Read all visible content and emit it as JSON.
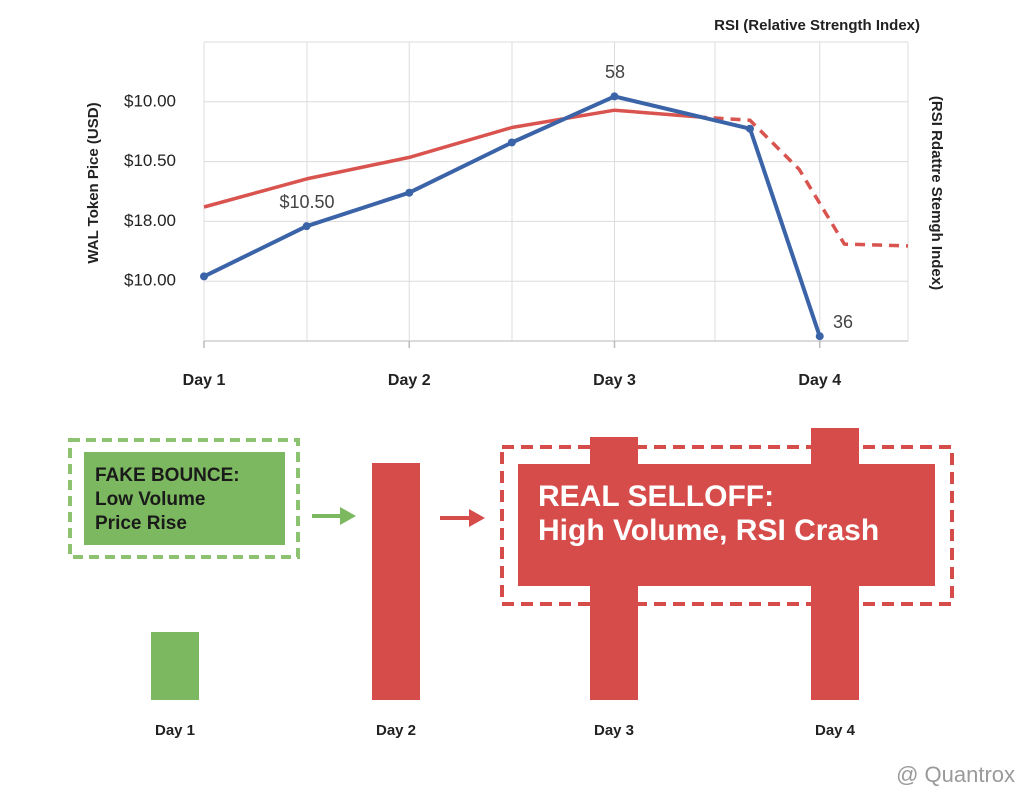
{
  "chart_data": [
    {
      "type": "line",
      "title": "RSI (Relative Strength Index)",
      "y_label": "WAL Token Pice (USD)",
      "y2_label": "(RSI Rdattre Stemgh Index)",
      "xlim": [
        1,
        4.43
      ],
      "xticks": [
        {
          "value": 1,
          "label": "Day 1"
        },
        {
          "value": 2,
          "label": "Day 2"
        },
        {
          "value": 3,
          "label": "Day 3"
        },
        {
          "value": 4,
          "label": "Day 4"
        }
      ],
      "ylim": [
        -1,
        4
      ],
      "yticks": [
        {
          "value": 3,
          "label": "$10.00"
        },
        {
          "value": 2,
          "label": "$10.50"
        },
        {
          "value": 1,
          "label": "$18.00"
        },
        {
          "value": 0,
          "label": "$10.00"
        }
      ],
      "grid": true,
      "series": [
        {
          "color": "#d9534f",
          "dashed": false,
          "markers": false,
          "x": [
            1,
            1.5,
            2,
            2.5,
            3,
            3.4
          ],
          "values": [
            1.24,
            1.71,
            2.07,
            2.57,
            2.86,
            2.75
          ]
        },
        {
          "color": "#d9534f",
          "dashed": true,
          "markers": false,
          "x": [
            3.4,
            3.66,
            3.9,
            4.12,
            4.43
          ],
          "values": [
            2.75,
            2.69,
            1.87,
            0.62,
            0.59
          ]
        },
        {
          "color": "#3b64a8",
          "dashed": false,
          "markers": true,
          "x": [
            1,
            1.5,
            2,
            2.5,
            3,
            3.66,
            4
          ],
          "values": [
            0.08,
            0.92,
            1.48,
            2.32,
            3.09,
            2.55,
            -0.92
          ]
        }
      ],
      "annotations": [
        {
          "text": "58"
        },
        {
          "text": "$10.50"
        },
        {
          "text": "36"
        }
      ]
    },
    {
      "type": "bar",
      "categories": [
        "Day 1",
        "Day 2",
        "Day 3",
        "Day 4"
      ],
      "values": [
        68,
        237,
        263,
        272
      ],
      "colors": [
        "#7cb85f",
        "#d64c4a",
        "#d64c4a",
        "#d64c4a"
      ],
      "ylim": [
        0,
        272
      ],
      "annotations": [
        {
          "lines": [
            "FAKE BOUNCE:",
            "Low Volume",
            "Price Rise"
          ]
        },
        {
          "lines": [
            "REAL SELLOFF:",
            "High Volume, RSI Crash"
          ]
        }
      ]
    }
  ],
  "watermark": "@ Quantrox"
}
